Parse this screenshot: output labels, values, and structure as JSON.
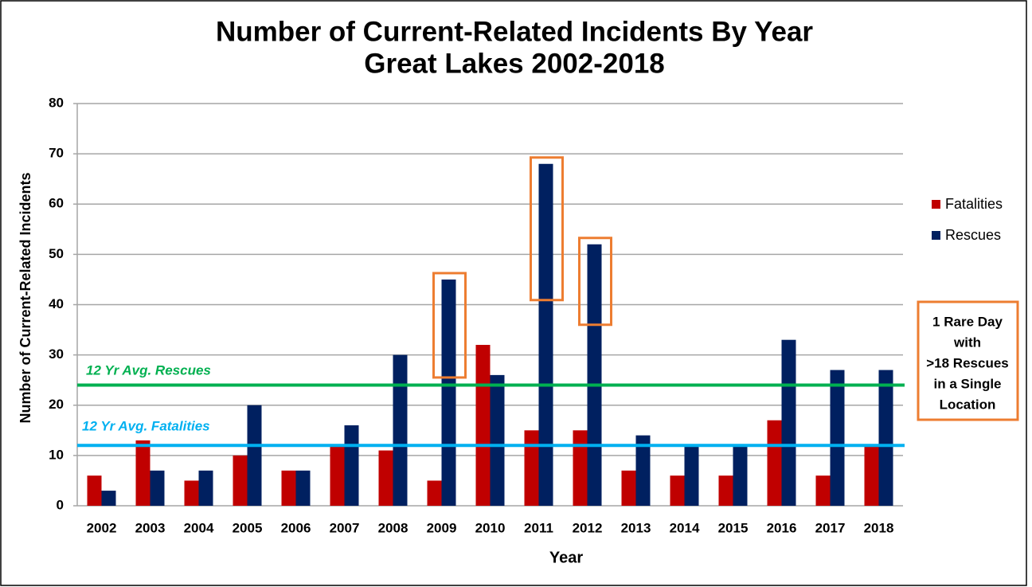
{
  "chart_data": {
    "type": "bar",
    "title": [
      "Number of Current-Related Incidents By Year",
      "Great Lakes 2002-2018"
    ],
    "x_label": "Year",
    "y_label": "Number of Current-Related Incidents",
    "categories": [
      "2002",
      "2003",
      "2004",
      "2005",
      "2006",
      "2007",
      "2008",
      "2009",
      "2010",
      "2011",
      "2012",
      "2013",
      "2014",
      "2015",
      "2016",
      "2017",
      "2018"
    ],
    "series": [
      {
        "name": "Fatalities",
        "color": "#c00000",
        "values": [
          6,
          13,
          5,
          10,
          7,
          12,
          11,
          5,
          32,
          15,
          15,
          7,
          6,
          6,
          17,
          6,
          12
        ]
      },
      {
        "name": "Rescues",
        "color": "#002060",
        "values": [
          3,
          7,
          7,
          20,
          7,
          16,
          30,
          45,
          26,
          68,
          52,
          14,
          12,
          12,
          33,
          27,
          27
        ]
      }
    ],
    "ylim": [
      0,
      80
    ],
    "yticks": [
      0,
      10,
      20,
      30,
      40,
      50,
      60,
      70,
      80
    ],
    "grid": true,
    "legend": "right",
    "reference_lines": [
      {
        "label": "12 Yr Avg. Rescues",
        "value": 24,
        "color": "#00b050"
      },
      {
        "label": "12 Yr Avg. Fatalities",
        "value": 12,
        "color": "#00b0f0"
      }
    ],
    "annotation": [
      "1 Rare Day",
      "with",
      ">18 Rescues",
      "in a Single",
      "Location"
    ]
  }
}
